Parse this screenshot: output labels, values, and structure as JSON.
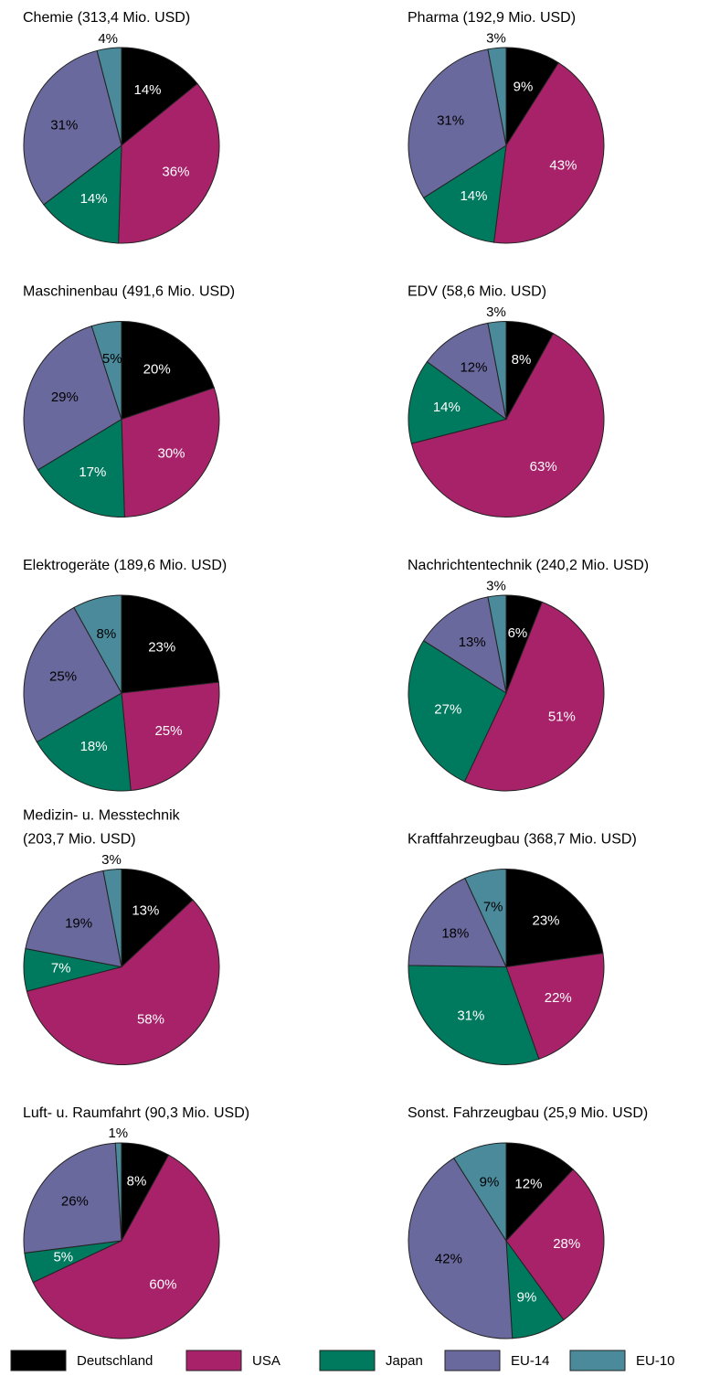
{
  "chart_data": [
    {
      "type": "pie",
      "title": "Chemie (313,4 Mio. USD)",
      "categories": [
        "Deutschland",
        "USA",
        "Japan",
        "EU-14",
        "EU-10"
      ],
      "colors": [
        "#000000",
        "#a8226a",
        "#007a5e",
        "#6a699d",
        "#4a8a9b"
      ],
      "values": [
        14,
        36,
        14,
        31,
        4
      ],
      "value_labels": [
        "14%",
        "36%",
        "14%",
        "31%",
        "4%"
      ]
    },
    {
      "type": "pie",
      "title": "Pharma (192,9 Mio. USD)",
      "categories": [
        "Deutschland",
        "USA",
        "Japan",
        "EU-14",
        "EU-10"
      ],
      "colors": [
        "#000000",
        "#a8226a",
        "#007a5e",
        "#6a699d",
        "#4a8a9b"
      ],
      "values": [
        9,
        43,
        14,
        31,
        3
      ],
      "value_labels": [
        "9%",
        "43%",
        "14%",
        "31%",
        "3%"
      ]
    },
    {
      "type": "pie",
      "title": "Maschinenbau (491,6 Mio. USD)",
      "categories": [
        "Deutschland",
        "USA",
        "Japan",
        "EU-14",
        "EU-10"
      ],
      "colors": [
        "#000000",
        "#a8226a",
        "#007a5e",
        "#6a699d",
        "#4a8a9b"
      ],
      "values": [
        20,
        30,
        17,
        29,
        5
      ],
      "value_labels": [
        "20%",
        "30%",
        "17%",
        "29%",
        "5%"
      ]
    },
    {
      "type": "pie",
      "title": "EDV (58,6 Mio. USD)",
      "categories": [
        "Deutschland",
        "USA",
        "Japan",
        "EU-14",
        "EU-10"
      ],
      "colors": [
        "#000000",
        "#a8226a",
        "#007a5e",
        "#6a699d",
        "#4a8a9b"
      ],
      "values": [
        8,
        63,
        14,
        12,
        3
      ],
      "value_labels": [
        "8%",
        "63%",
        "14%",
        "12%",
        "3%"
      ]
    },
    {
      "type": "pie",
      "title": "Elektrogeräte (189,6 Mio. USD)",
      "categories": [
        "Deutschland",
        "USA",
        "Japan",
        "EU-14",
        "EU-10"
      ],
      "colors": [
        "#000000",
        "#a8226a",
        "#007a5e",
        "#6a699d",
        "#4a8a9b"
      ],
      "values": [
        23,
        25,
        18,
        25,
        8
      ],
      "value_labels": [
        "23%",
        "25%",
        "18%",
        "25%",
        "8%"
      ]
    },
    {
      "type": "pie",
      "title": "Nachrichtentechnik (240,2 Mio. USD)",
      "categories": [
        "Deutschland",
        "USA",
        "Japan",
        "EU-14",
        "EU-10"
      ],
      "colors": [
        "#000000",
        "#a8226a",
        "#007a5e",
        "#6a699d",
        "#4a8a9b"
      ],
      "values": [
        6,
        51,
        27,
        13,
        3
      ],
      "value_labels": [
        "6%",
        "51%",
        "27%",
        "13%",
        "3%"
      ]
    },
    {
      "type": "pie",
      "title": [
        "Medizin- u. Messtechnik",
        "(203,7 Mio. USD)"
      ],
      "categories": [
        "Deutschland",
        "USA",
        "Japan",
        "EU-14",
        "EU-10"
      ],
      "colors": [
        "#000000",
        "#a8226a",
        "#007a5e",
        "#6a699d",
        "#4a8a9b"
      ],
      "values": [
        13,
        58,
        7,
        19,
        3
      ],
      "value_labels": [
        "13%",
        "58%",
        "7%",
        "19%",
        "3%"
      ]
    },
    {
      "type": "pie",
      "title": "Kraftfahrzeugbau (368,7 Mio. USD)",
      "categories": [
        "Deutschland",
        "USA",
        "Japan",
        "EU-14",
        "EU-10"
      ],
      "colors": [
        "#000000",
        "#a8226a",
        "#007a5e",
        "#6a699d",
        "#4a8a9b"
      ],
      "values": [
        23,
        22,
        31,
        18,
        7
      ],
      "value_labels": [
        "23%",
        "22%",
        "31%",
        "18%",
        "7%"
      ]
    },
    {
      "type": "pie",
      "title": "Luft- u. Raumfahrt (90,3 Mio. USD)",
      "categories": [
        "Deutschland",
        "USA",
        "Japan",
        "EU-14",
        "EU-10"
      ],
      "colors": [
        "#000000",
        "#a8226a",
        "#007a5e",
        "#6a699d",
        "#4a8a9b"
      ],
      "values": [
        8,
        60,
        5,
        26,
        1
      ],
      "value_labels": [
        "8%",
        "60%",
        "5%",
        "26%",
        "1%"
      ]
    },
    {
      "type": "pie",
      "title": "Sonst. Fahrzeugbau (25,9 Mio. USD)",
      "categories": [
        "Deutschland",
        "USA",
        "Japan",
        "EU-14",
        "EU-10"
      ],
      "colors": [
        "#000000",
        "#a8226a",
        "#007a5e",
        "#6a699d",
        "#4a8a9b"
      ],
      "values": [
        12,
        28,
        9,
        42,
        9
      ],
      "value_labels": [
        "12%",
        "28%",
        "9%",
        "42%",
        "9%"
      ]
    }
  ]
}
